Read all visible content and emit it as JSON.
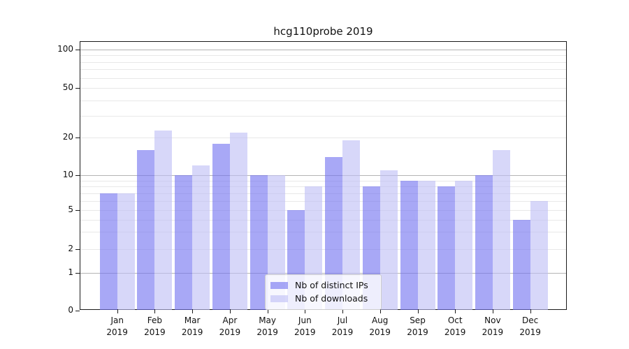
{
  "chart_data": {
    "type": "bar",
    "title": "hcg110probe 2019",
    "categories": [
      "Jan",
      "Feb",
      "Mar",
      "Apr",
      "May",
      "Jun",
      "Jul",
      "Aug",
      "Sep",
      "Oct",
      "Nov",
      "Dec"
    ],
    "year_label": "2019",
    "series": [
      {
        "name": "Nb of distinct IPs",
        "color": "rgba(115,115,240,0.62)",
        "values": [
          7,
          16,
          10,
          18,
          10,
          5,
          14,
          8,
          9,
          8,
          10,
          4
        ]
      },
      {
        "name": "Nb of downloads",
        "color": "rgba(190,190,245,0.62)",
        "values": [
          7,
          23,
          12,
          22,
          10,
          8,
          19,
          11,
          9,
          9,
          16,
          6
        ]
      }
    ],
    "xlabel": "",
    "ylabel": "",
    "ylim": [
      0,
      114
    ],
    "yticks": [
      0,
      1,
      2,
      5,
      10,
      20,
      50,
      100
    ],
    "ygrid_major": [
      1,
      10,
      100
    ],
    "ygrid_minor": [
      2,
      3,
      4,
      5,
      6,
      7,
      8,
      9,
      20,
      30,
      40,
      50,
      60,
      70,
      80,
      90
    ],
    "y_scale": "log-like above 1, linear 0-1",
    "y_scale_anchors": [
      [
        0,
        1.0
      ],
      [
        1,
        0.8607
      ],
      [
        2,
        0.7721
      ],
      [
        5,
        0.6263
      ],
      [
        10,
        0.4961
      ],
      [
        20,
        0.3568
      ],
      [
        50,
        0.1719
      ],
      [
        100,
        0.0279
      ]
    ],
    "grid": true,
    "legend": {
      "position": "lower-center",
      "entries": [
        "Nb of distinct IPs",
        "Nb of downloads"
      ]
    },
    "colors": {
      "bar_dark": "#a8a8f5",
      "bar_light": "#d9d9f8",
      "grid_minor": "#e8e8e8",
      "grid_major": "#b4b4b4",
      "spine": "#1a1a1a",
      "background": "#ffffff"
    }
  }
}
